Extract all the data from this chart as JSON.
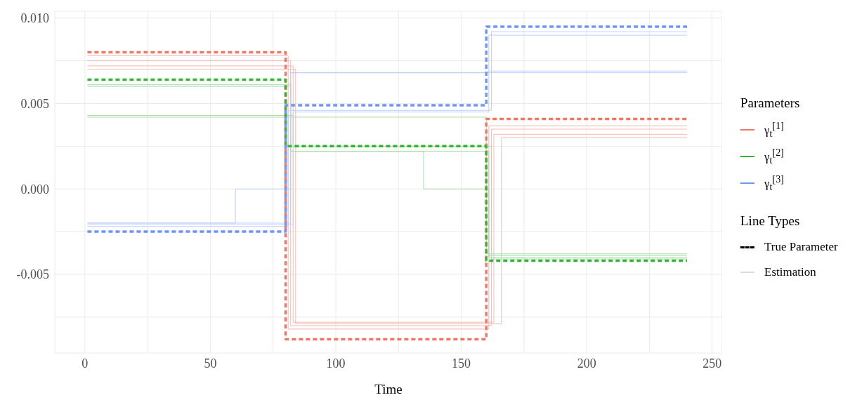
{
  "chart_data": {
    "type": "step",
    "xlabel": "Time",
    "legend_title": "Parameters",
    "legend": "right",
    "grid": true,
    "line_style": "solid",
    "xlim": [
      -12,
      254
    ],
    "xticks": [
      0,
      {
        "value": 25,
        "label": null
      },
      50,
      {
        "value": 75,
        "label": null
      },
      100,
      {
        "value": 125,
        "label": null
      },
      150,
      {
        "value": 175,
        "label": null
      },
      200,
      {
        "value": 225,
        "label": null
      },
      250
    ],
    "ylim": [
      -0.0096,
      0.0104
    ],
    "yticks": [
      {
        "value": -0.0075,
        "label": null
      },
      {
        "value": -0.005,
        "label": "-0.005"
      },
      {
        "value": -0.0025,
        "label": null
      },
      {
        "value": 0,
        "label": "0.000"
      },
      {
        "value": 0.0025,
        "label": null
      },
      {
        "value": 0.005,
        "label": "0.005"
      },
      {
        "value": 0.0075,
        "label": null
      },
      {
        "value": 0.01,
        "label": "0.010"
      }
    ],
    "annotations": [
      "Line Types",
      "True Parameter",
      "Estimation"
    ],
    "series": [
      {
        "color": "#f5b8b0",
        "x": [
          1,
          82,
          162,
          240
        ],
        "values": [
          0.0075,
          -0.008,
          0.0035,
          0.0035
        ]
      },
      {
        "color": "#f5b8b0",
        "x": [
          1,
          83,
          163,
          240
        ],
        "values": [
          0.0072,
          -0.0078,
          0.0032,
          0.0032
        ]
      },
      {
        "color": "#f5b8b0",
        "x": [
          1,
          81,
          161,
          240
        ],
        "values": [
          0.0078,
          -0.0082,
          0.0037,
          0.0037
        ]
      },
      {
        "color": "#f5b8b0",
        "x": [
          1,
          84,
          166,
          240
        ],
        "values": [
          0.007,
          -0.0079,
          0.003,
          0.003
        ]
      },
      {
        "color": "#a8dda8",
        "x": [
          1,
          82,
          161,
          240
        ],
        "values": [
          0.006,
          0.0022,
          -0.0039,
          -0.0039
        ]
      },
      {
        "color": "#a8dda8",
        "x": [
          1,
          82,
          160,
          240
        ],
        "values": [
          0.0042,
          0.0042,
          -0.0038,
          -0.0038
        ]
      },
      {
        "color": "#a8dda8",
        "x": [
          1,
          82,
          135,
          161,
          240
        ],
        "values": [
          0.0061,
          0.0022,
          0.0,
          -0.004,
          -0.004
        ]
      },
      {
        "color": "#a8dda8",
        "x": [
          1,
          83,
          162,
          240
        ],
        "values": [
          0.0043,
          0.0025,
          -0.0041,
          -0.0041
        ]
      },
      {
        "color": "#bccffb",
        "x": [
          1,
          82,
          161,
          240
        ],
        "values": [
          -0.002,
          0.0068,
          0.0068,
          0.0068
        ]
      },
      {
        "color": "#bccffb",
        "x": [
          1,
          83,
          161,
          240
        ],
        "values": [
          -0.0021,
          0.0045,
          0.009,
          0.009
        ]
      },
      {
        "color": "#bccffb",
        "x": [
          1,
          60,
          82,
          161,
          240
        ],
        "values": [
          -0.002,
          0.0,
          0.0068,
          0.0069,
          0.0069
        ]
      },
      {
        "color": "#bccffb",
        "x": [
          1,
          81,
          162,
          240
        ],
        "values": [
          -0.0022,
          0.0046,
          0.0092,
          0.0092
        ]
      },
      {
        "name": "γ$_{t}$$^{[1]}$",
        "color": "#ee7766",
        "line_style": "dashed",
        "x": [
          1,
          80,
          160,
          240
        ],
        "values": [
          0.008,
          -0.0088,
          0.0041,
          0.0041
        ]
      },
      {
        "name": "γ$_{t}$$^{[2]}$",
        "color": "#33b533",
        "line_style": "dashed",
        "x": [
          1,
          80,
          160,
          240
        ],
        "values": [
          0.0064,
          0.0025,
          -0.0042,
          -0.0042
        ]
      },
      {
        "name": "γ$_{t}$$^{[3]}$",
        "color": "#6f95f5",
        "line_style": "dashed",
        "x": [
          1,
          80,
          160,
          240
        ],
        "values": [
          -0.0025,
          0.0049,
          0.0095,
          0.0095
        ]
      }
    ]
  }
}
